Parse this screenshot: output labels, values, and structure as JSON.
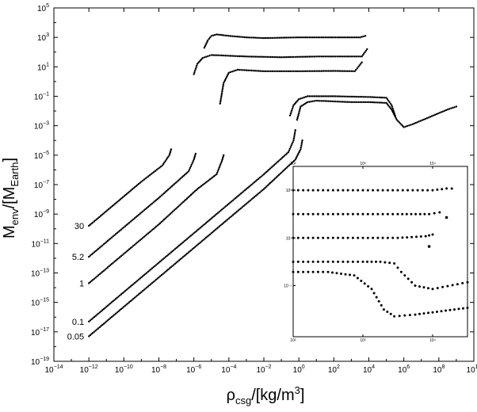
{
  "chart_data": {
    "type": "scatter",
    "title": "",
    "xlabel": {
      "base": "ρ",
      "sub": "csg",
      "rest": "/[kg/m",
      "sup": "3",
      "end": "]"
    },
    "ylabel": {
      "pre": "M",
      "sub": "env",
      "mid": "/[M",
      "sub2": "Earth",
      "end": "]"
    },
    "x_log": true,
    "y_log": true,
    "xlim": [
      -14,
      10
    ],
    "ylim": [
      -19,
      5
    ],
    "x_ticks": [
      -14,
      -12,
      -10,
      -8,
      -6,
      -4,
      -2,
      0,
      2,
      4,
      6,
      8,
      10
    ],
    "y_ticks": [
      5,
      3,
      1,
      -1,
      -3,
      -5,
      -7,
      -9,
      -11,
      -13,
      -15,
      -17,
      -19
    ],
    "grid": false,
    "series": [
      {
        "name": "30",
        "segments": [
          [
            [
              -12.0,
              -9.8
            ],
            [
              -10.5,
              -8.3
            ],
            [
              -9.0,
              -6.8
            ],
            [
              -7.8,
              -5.7
            ],
            [
              -7.4,
              -5.0
            ],
            [
              -7.3,
              -4.6
            ]
          ],
          [
            [
              -5.4,
              2.3
            ],
            [
              -5.2,
              2.8
            ],
            [
              -5.0,
              3.1
            ],
            [
              -4.7,
              3.2
            ],
            [
              -4.0,
              3.1
            ],
            [
              -3.0,
              3.0
            ],
            [
              -2.0,
              2.95
            ],
            [
              0.0,
              3.0
            ],
            [
              2.0,
              3.0
            ],
            [
              3.5,
              3.0
            ],
            [
              3.8,
              3.1
            ]
          ]
        ]
      },
      {
        "name": "5.2",
        "segments": [
          [
            [
              -12.0,
              -11.9
            ],
            [
              -10.0,
              -9.9
            ],
            [
              -8.0,
              -7.9
            ],
            [
              -6.3,
              -6.1
            ],
            [
              -6.0,
              -5.3
            ],
            [
              -5.9,
              -4.9
            ]
          ],
          [
            [
              -6.0,
              0.5
            ],
            [
              -5.8,
              1.2
            ],
            [
              -5.5,
              1.6
            ],
            [
              -5.0,
              1.8
            ],
            [
              -4.0,
              1.75
            ],
            [
              -3.0,
              1.7
            ],
            [
              -1.0,
              1.65
            ],
            [
              1.0,
              1.7
            ],
            [
              3.0,
              1.7
            ],
            [
              3.6,
              1.7
            ],
            [
              3.9,
              2.2
            ]
          ]
        ]
      },
      {
        "name": "1",
        "segments": [
          [
            [
              -12.0,
              -13.7
            ],
            [
              -10.0,
              -11.7
            ],
            [
              -8.0,
              -9.7
            ],
            [
              -5.8,
              -7.3
            ],
            [
              -4.7,
              -6.3
            ],
            [
              -4.4,
              -5.4
            ],
            [
              -4.3,
              -5.0
            ]
          ],
          [
            [
              -4.5,
              -1.5
            ],
            [
              -4.3,
              -0.1
            ],
            [
              -4.0,
              0.6
            ],
            [
              -3.5,
              0.8
            ],
            [
              -2.0,
              0.7
            ],
            [
              0.0,
              0.7
            ],
            [
              2.0,
              0.72
            ],
            [
              3.2,
              0.7
            ],
            [
              3.6,
              1.3
            ]
          ]
        ]
      },
      {
        "name": "0.1",
        "segments": [
          [
            [
              -12.0,
              -16.3
            ],
            [
              -10.0,
              -14.3
            ],
            [
              -8.0,
              -12.3
            ],
            [
              -6.0,
              -10.3
            ],
            [
              -4.0,
              -8.3
            ],
            [
              -2.0,
              -6.3
            ],
            [
              -0.6,
              -4.8
            ],
            [
              -0.3,
              -4.0
            ],
            [
              -0.2,
              -3.3
            ]
          ],
          [
            [
              -0.5,
              -2.3
            ],
            [
              -0.3,
              -1.6
            ],
            [
              0.0,
              -1.2
            ],
            [
              0.5,
              -1.0
            ],
            [
              2.0,
              -1.0
            ],
            [
              4.0,
              -1.05
            ],
            [
              5.0,
              -1.1
            ],
            [
              5.3,
              -1.6
            ],
            [
              5.5,
              -2.3
            ]
          ]
        ]
      },
      {
        "name": "0.05",
        "segments": [
          [
            [
              -12.0,
              -17.3
            ],
            [
              -10.0,
              -15.3
            ],
            [
              -8.0,
              -13.3
            ],
            [
              -6.0,
              -11.3
            ],
            [
              -4.0,
              -9.3
            ],
            [
              -2.0,
              -7.3
            ],
            [
              -0.2,
              -5.3
            ],
            [
              0.1,
              -4.6
            ],
            [
              0.2,
              -4.0
            ]
          ],
          [
            [
              -0.1,
              -2.6
            ],
            [
              0.1,
              -1.7
            ],
            [
              0.5,
              -1.4
            ],
            [
              1.0,
              -1.3
            ],
            [
              2.0,
              -1.35
            ],
            [
              3.0,
              -1.4
            ],
            [
              4.0,
              -1.4
            ],
            [
              5.0,
              -1.45
            ],
            [
              5.3,
              -1.9
            ],
            [
              5.6,
              -2.6
            ],
            [
              6.0,
              -3.1
            ],
            [
              6.5,
              -2.9
            ],
            [
              7.5,
              -2.4
            ],
            [
              8.5,
              -1.9
            ],
            [
              9.0,
              -1.7
            ]
          ]
        ]
      }
    ],
    "series_labels": [
      "30",
      "5.2",
      "1",
      "0.1",
      "0.05"
    ],
    "inset": {
      "x_ticks": [
        "10²",
        "10³",
        "10⁴"
      ],
      "x_top": [
        "10²",
        "10³",
        "10⁴"
      ],
      "y_ticks": [
        "10³",
        "10¹",
        "10⁻¹"
      ],
      "series": [
        [
          [
            0.0,
            0.14
          ],
          [
            0.2,
            0.14
          ],
          [
            0.4,
            0.14
          ],
          [
            0.6,
            0.14
          ],
          [
            0.8,
            0.14
          ],
          [
            0.88,
            0.13
          ],
          [
            0.91,
            0.13
          ]
        ],
        [
          [
            0.0,
            0.28
          ],
          [
            0.2,
            0.28
          ],
          [
            0.4,
            0.28
          ],
          [
            0.6,
            0.28
          ],
          [
            0.78,
            0.28
          ],
          [
            0.84,
            0.27
          ]
        ],
        [
          [
            0.0,
            0.42
          ],
          [
            0.2,
            0.42
          ],
          [
            0.4,
            0.42
          ],
          [
            0.6,
            0.42
          ],
          [
            0.76,
            0.41
          ],
          [
            0.8,
            0.4
          ]
        ],
        [
          [
            0.0,
            0.56
          ],
          [
            0.2,
            0.56
          ],
          [
            0.4,
            0.56
          ],
          [
            0.5,
            0.56
          ],
          [
            0.58,
            0.57
          ],
          [
            0.62,
            0.62
          ],
          [
            0.7,
            0.7
          ],
          [
            0.8,
            0.72
          ],
          [
            1.0,
            0.68
          ]
        ],
        [
          [
            0.0,
            0.62
          ],
          [
            0.2,
            0.62
          ],
          [
            0.35,
            0.64
          ],
          [
            0.45,
            0.72
          ],
          [
            0.52,
            0.84
          ],
          [
            0.58,
            0.88
          ],
          [
            0.7,
            0.87
          ],
          [
            0.85,
            0.85
          ],
          [
            1.0,
            0.83
          ]
        ]
      ],
      "isolated_points": [
        [
          0.88,
          0.3
        ],
        [
          0.78,
          0.47
        ]
      ]
    }
  }
}
